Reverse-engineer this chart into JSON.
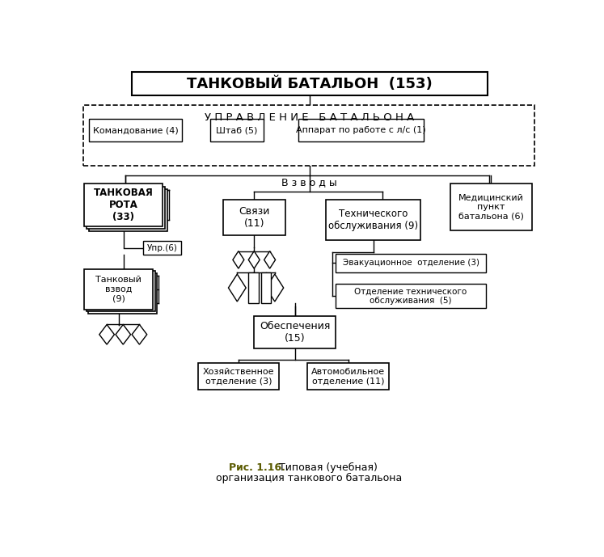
{
  "title": "ТАНКОВЫЙ БАТАЛЬОН  (153)",
  "upravlenie": "У П Р А В Л Е Н И Е   Б А Т А Л Ь О Н А",
  "sub_boxes": [
    "Командование (4)",
    "Штаб (5)",
    "Аппарат по работе с л/с (1)"
  ],
  "vzvody_label": "В з в о д ы",
  "tank_rota": "ТАНКОВАЯ\nРОТА\n(33)",
  "upr": "Упр.(6)",
  "tank_vzvod": "Танковый\nвзвод\n(9)",
  "svyazi": "Связи\n(11)",
  "tech": "Технического\nобслуживания (9)",
  "med": "Медицинский\nпункт\nбатальона (6)",
  "evak": "Эвакуационное  отделение (3)",
  "otech": "Отделение технического\nобслуживания  (5)",
  "obespech": "Обеспечения\n(15)",
  "hozyaist": "Хозяйственное\nотделение (3)",
  "auto": "Автомобильное\nотделение (11)",
  "caption_bold": "Рис. 1.16.",
  "caption_rest": " Типовая (учебная)",
  "caption_line2": "организация танкового батальона",
  "bg_color": "#ffffff",
  "box_edge": "#000000",
  "text_color": "#000000",
  "caption_color": "#5a5a00"
}
